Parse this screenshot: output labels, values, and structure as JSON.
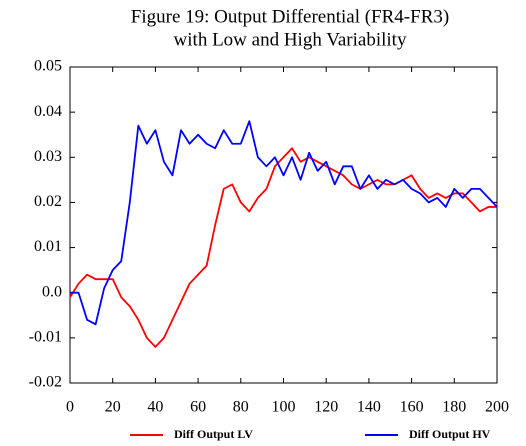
{
  "chart_data": {
    "type": "line",
    "title": [
      "Figure 19: Output Differential (FR4-FR3)",
      "with Low and High Variability"
    ],
    "x": [
      0,
      4,
      8,
      12,
      16,
      20,
      24,
      28,
      32,
      36,
      40,
      44,
      48,
      52,
      56,
      60,
      64,
      68,
      72,
      76,
      80,
      84,
      88,
      92,
      96,
      100,
      104,
      108,
      112,
      116,
      120,
      124,
      128,
      132,
      136,
      140,
      144,
      148,
      152,
      156,
      160,
      164,
      168,
      172,
      176,
      180,
      184,
      188,
      192,
      196,
      200
    ],
    "series": [
      {
        "name": "Diff Output LV",
        "color": "#ff0000",
        "values": [
          -0.001,
          0.002,
          0.004,
          0.003,
          0.003,
          0.003,
          -0.001,
          -0.003,
          -0.006,
          -0.01,
          -0.012,
          -0.01,
          -0.006,
          -0.002,
          0.002,
          0.004,
          0.006,
          0.015,
          0.023,
          0.024,
          0.02,
          0.018,
          0.021,
          0.023,
          0.028,
          0.03,
          0.032,
          0.029,
          0.03,
          0.029,
          0.028,
          0.027,
          0.026,
          0.024,
          0.023,
          0.024,
          0.025,
          0.024,
          0.024,
          0.025,
          0.026,
          0.023,
          0.021,
          0.022,
          0.021,
          0.022,
          0.022,
          0.02,
          0.018,
          0.019,
          0.019
        ]
      },
      {
        "name": "Diff Output HV",
        "color": "#0000ff",
        "values": [
          0.0,
          0.0,
          -0.006,
          -0.007,
          0.001,
          0.005,
          0.007,
          0.02,
          0.037,
          0.033,
          0.036,
          0.029,
          0.026,
          0.036,
          0.033,
          0.035,
          0.033,
          0.032,
          0.036,
          0.033,
          0.033,
          0.038,
          0.03,
          0.028,
          0.03,
          0.026,
          0.03,
          0.025,
          0.031,
          0.027,
          0.029,
          0.024,
          0.028,
          0.028,
          0.023,
          0.026,
          0.023,
          0.025,
          0.024,
          0.025,
          0.023,
          0.022,
          0.02,
          0.021,
          0.019,
          0.023,
          0.021,
          0.023,
          0.023,
          0.021,
          0.019
        ]
      }
    ],
    "xlim": [
      0,
      200
    ],
    "xticks": [
      0,
      20,
      40,
      60,
      80,
      100,
      120,
      140,
      160,
      180,
      200
    ],
    "ylim": [
      -0.02,
      0.05
    ],
    "yticks": [
      -0.02,
      -0.01,
      {
        "value": 0,
        "label": "0.0"
      },
      0.01,
      0.02,
      0.03,
      0.04,
      0.05
    ],
    "grid": false,
    "legend": "bottom"
  }
}
